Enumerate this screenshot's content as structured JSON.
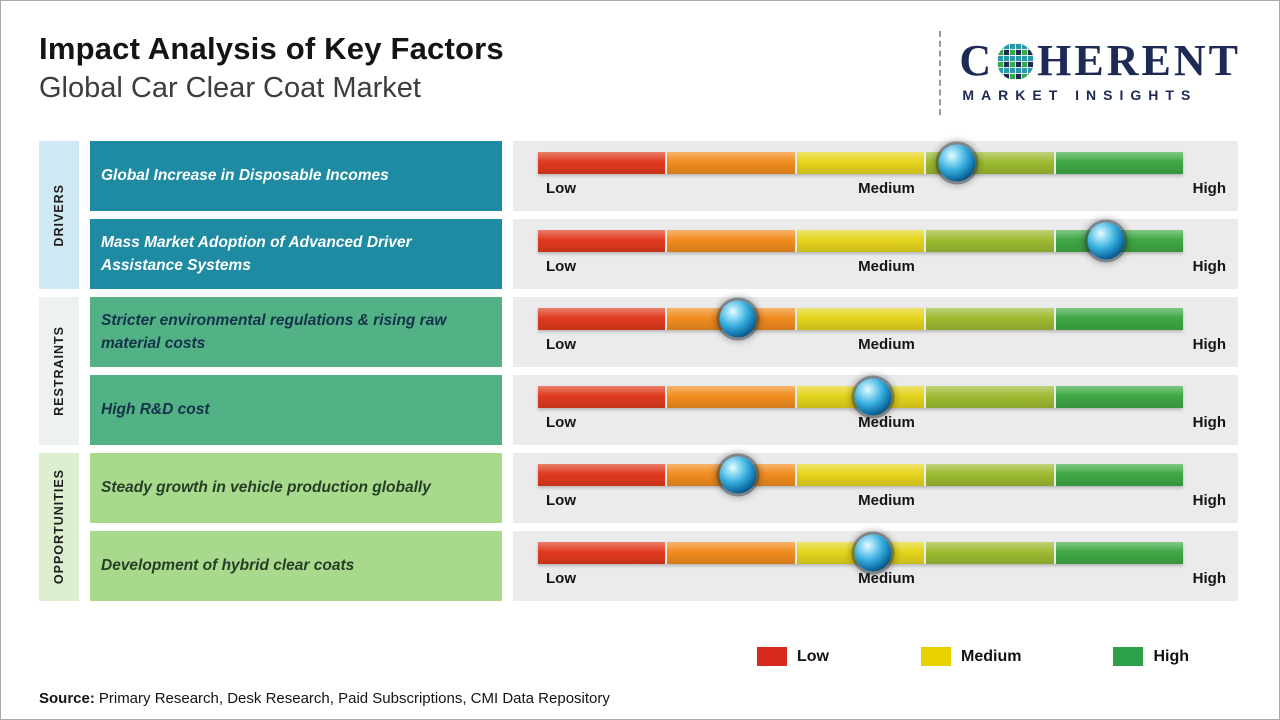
{
  "header": {
    "title": "Impact Analysis of Key Factors",
    "subtitle": "Global Car Clear Coat Market"
  },
  "brand": {
    "wordmark_left": "C",
    "wordmark_right": "HERENT",
    "tagline": "MARKET INSIGHTS",
    "navy": "#1e2a56"
  },
  "groups": [
    {
      "label": "DRIVERS"
    },
    {
      "label": "RESTRAINTS"
    },
    {
      "label": "OPPORTUNITIES"
    }
  ],
  "scale": {
    "low": "Low",
    "medium": "Medium",
    "high": "High"
  },
  "rows": [
    {
      "group": "Drivers",
      "label": "Global Increase in Disposable Incomes",
      "impact_pct": 65
    },
    {
      "group": "Drivers",
      "label": "Mass Market Adoption of Advanced Driver Assistance Systems",
      "impact_pct": 88
    },
    {
      "group": "Restraints",
      "label": "Stricter environmental regulations & rising raw material costs",
      "impact_pct": 31
    },
    {
      "group": "Restraints",
      "label": "High R&D cost",
      "impact_pct": 52
    },
    {
      "group": "Opportunities",
      "label": "Steady growth in vehicle production globally",
      "impact_pct": 31
    },
    {
      "group": "Opportunities",
      "label": "Development of hybrid clear coats",
      "impact_pct": 52
    }
  ],
  "bar": {
    "segment_colors": [
      "#e03a1e",
      "#f18c1f",
      "#e5d41d",
      "#9dbb32",
      "#3fa845"
    ]
  },
  "colors": {
    "driver_box": "#1e8ba3",
    "restraint_box": "#52b286",
    "opportunity_box": "#a9d98c",
    "drivers_strip": "#cfe9f4",
    "restraints_strip": "#eef2ee",
    "opportunities_strip": "#dcefcf",
    "panel_bg": "#ebebeb"
  },
  "legend": [
    {
      "label": "Low",
      "color": "#d7291e"
    },
    {
      "label": "Medium",
      "color": "#e8d100"
    },
    {
      "label": "High",
      "color": "#2da04c"
    }
  ],
  "source": {
    "prefix": "Source:",
    "text": "Primary Research, Desk Research, Paid Subscriptions, CMI Data Repository"
  },
  "chart_data": {
    "type": "bar",
    "orientation": "horizontal",
    "title": "Impact Analysis of Key Factors",
    "subtitle": "Global Car Clear Coat Market",
    "scale_labels": [
      "Low",
      "Medium",
      "High"
    ],
    "xlim": [
      0,
      100
    ],
    "categories": [
      "Global Increase in Disposable Incomes",
      "Mass Market Adoption of Advanced Driver Assistance Systems",
      "Stricter environmental regulations & rising raw material costs",
      "High R&D cost",
      "Steady growth in vehicle production globally",
      "Development of hybrid clear coats"
    ],
    "groups": [
      "Drivers",
      "Drivers",
      "Restraints",
      "Restraints",
      "Opportunities",
      "Opportunities"
    ],
    "values": [
      65,
      88,
      31,
      52,
      31,
      52
    ],
    "value_meaning": "marker position on Low-to-High impact scale, percent of bar length",
    "legend": [
      "Low",
      "Medium",
      "High"
    ],
    "legend_position": "bottom-right",
    "grid": false
  }
}
